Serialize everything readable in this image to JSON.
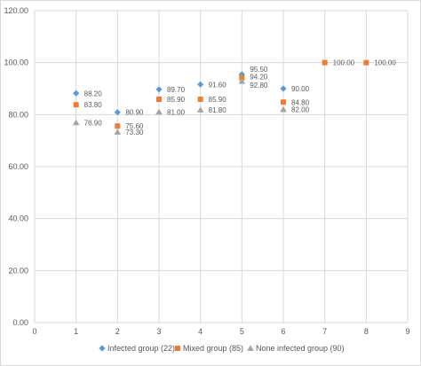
{
  "chart_data": {
    "type": "scatter",
    "title": "",
    "xlabel": "",
    "ylabel": "",
    "xlim": [
      0,
      9
    ],
    "ylim": [
      0,
      120
    ],
    "x_ticks": [
      "0",
      "1",
      "2",
      "3",
      "4",
      "5",
      "6",
      "7",
      "8",
      "9"
    ],
    "y_ticks": [
      "0.00",
      "20.00",
      "40.00",
      "60.00",
      "80.00",
      "100.00",
      "120.00"
    ],
    "grid": true,
    "legend_position": "bottom",
    "series": [
      {
        "name": "Infected group (22)",
        "marker": "diamond",
        "color": "#5b9bd5",
        "points": [
          {
            "x": 1,
            "y": 88.2,
            "label": "88.20"
          },
          {
            "x": 2,
            "y": 80.9,
            "label": "80.90"
          },
          {
            "x": 3,
            "y": 89.7,
            "label": "89.70"
          },
          {
            "x": 4,
            "y": 91.6,
            "label": "91.60"
          },
          {
            "x": 5,
            "y": 95.5,
            "label": "95.50"
          },
          {
            "x": 6,
            "y": 90.0,
            "label": "90.00"
          }
        ]
      },
      {
        "name": "Mixed group (85)",
        "marker": "square",
        "color": "#ed7d31",
        "points": [
          {
            "x": 1,
            "y": 83.8,
            "label": "83.80"
          },
          {
            "x": 2,
            "y": 75.6,
            "label": "75.60"
          },
          {
            "x": 3,
            "y": 85.9,
            "label": "85.90"
          },
          {
            "x": 4,
            "y": 85.9,
            "label": "85.90"
          },
          {
            "x": 5,
            "y": 94.2,
            "label": "94.20"
          },
          {
            "x": 6,
            "y": 84.8,
            "label": "84.80"
          },
          {
            "x": 7,
            "y": 100.0,
            "label": "100.00"
          },
          {
            "x": 8,
            "y": 100.0,
            "label": "100.00"
          }
        ]
      },
      {
        "name": "None infected group (90)",
        "marker": "triangle",
        "color": "#a5a5a5",
        "points": [
          {
            "x": 1,
            "y": 76.9,
            "label": "76.90"
          },
          {
            "x": 2,
            "y": 73.3,
            "label": "73.30"
          },
          {
            "x": 3,
            "y": 81.0,
            "label": "81.00"
          },
          {
            "x": 4,
            "y": 81.8,
            "label": "81.80"
          },
          {
            "x": 5,
            "y": 92.8,
            "label": "92.80"
          },
          {
            "x": 6,
            "y": 82.0,
            "label": "82.00"
          }
        ]
      }
    ]
  }
}
